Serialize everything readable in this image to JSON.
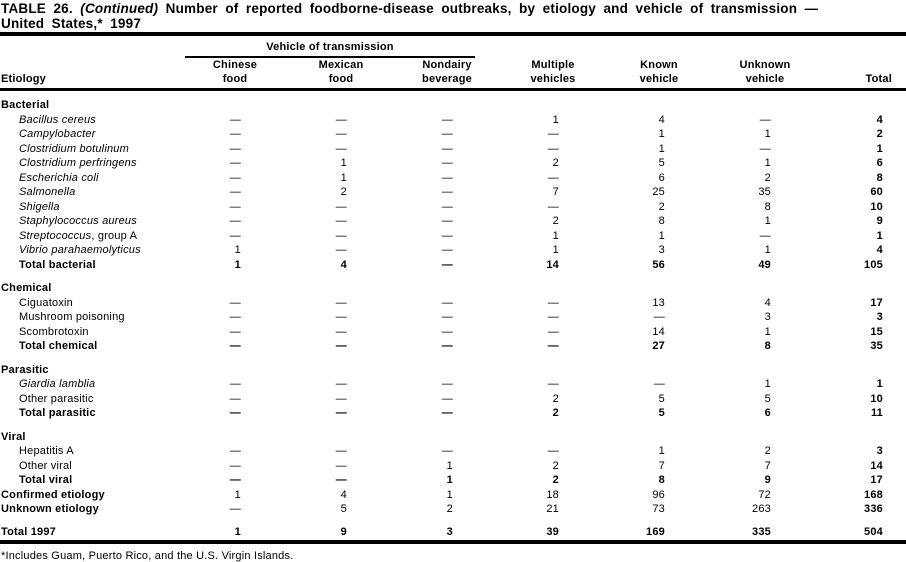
{
  "title": {
    "prefix": "TABLE 26.",
    "continued": "(Continued)",
    "line1_rest": "Number of reported foodborne-disease outbreaks, by etiology and vehicle of transmission —",
    "line2": "United States,* 1997"
  },
  "header": {
    "etiology_label": "Etiology",
    "spanner": "Vehicle of transmission",
    "columns": [
      {
        "line1": "Chinese",
        "line2": "food"
      },
      {
        "line1": "Mexican",
        "line2": "food"
      },
      {
        "line1": "Nondairy",
        "line2": "beverage"
      },
      {
        "line1": "Multiple",
        "line2": "vehicles"
      },
      {
        "line1": "Known",
        "line2": "vehicle"
      },
      {
        "line1": "Unknown",
        "line2": "vehicle"
      }
    ],
    "total_label": "Total"
  },
  "table": {
    "sections": [
      {
        "name": "Bacterial",
        "rows": [
          {
            "label": "Bacillus cereus",
            "italic": true,
            "values": [
              "—",
              "—",
              "—",
              "1",
              "4",
              "—",
              "4"
            ]
          },
          {
            "label": "Campylobacter",
            "italic": true,
            "values": [
              "—",
              "—",
              "—",
              "—",
              "1",
              "1",
              "2"
            ]
          },
          {
            "label": "Clostridium botulinum",
            "italic": true,
            "values": [
              "—",
              "—",
              "—",
              "—",
              "1",
              "—",
              "1"
            ]
          },
          {
            "label": "Clostridium perfringens",
            "italic": true,
            "values": [
              "—",
              "1",
              "—",
              "2",
              "5",
              "1",
              "6"
            ]
          },
          {
            "label": "Escherichia coli",
            "italic": true,
            "values": [
              "—",
              "1",
              "—",
              "—",
              "6",
              "2",
              "8"
            ]
          },
          {
            "label": "Salmonella",
            "italic": true,
            "values": [
              "—",
              "2",
              "—",
              "7",
              "25",
              "35",
              "60"
            ]
          },
          {
            "label": "Shigella",
            "italic": true,
            "values": [
              "—",
              "—",
              "—",
              "—",
              "2",
              "8",
              "10"
            ]
          },
          {
            "label": "Staphylococcus aureus",
            "italic": true,
            "values": [
              "—",
              "—",
              "—",
              "2",
              "8",
              "1",
              "9"
            ]
          },
          {
            "label": "Streptococcus",
            "label_suffix": ", group A",
            "italic": true,
            "values": [
              "—",
              "—",
              "—",
              "1",
              "1",
              "—",
              "1"
            ]
          },
          {
            "label": "Vibrio parahaemolyticus",
            "italic": true,
            "values": [
              "1",
              "—",
              "—",
              "1",
              "3",
              "1",
              "4"
            ]
          },
          {
            "label": "Total bacterial",
            "bold": true,
            "values": [
              "1",
              "4",
              "—",
              "14",
              "56",
              "49",
              "105"
            ]
          }
        ]
      },
      {
        "name": "Chemical",
        "rows": [
          {
            "label": "Ciguatoxin",
            "values": [
              "—",
              "—",
              "—",
              "—",
              "13",
              "4",
              "17"
            ]
          },
          {
            "label": "Mushroom poisoning",
            "values": [
              "—",
              "—",
              "—",
              "—",
              "—",
              "3",
              "3"
            ]
          },
          {
            "label": "Scombrotoxin",
            "values": [
              "—",
              "—",
              "—",
              "—",
              "14",
              "1",
              "15"
            ]
          },
          {
            "label": "Total chemical",
            "bold": true,
            "values": [
              "—",
              "—",
              "—",
              "—",
              "27",
              "8",
              "35"
            ]
          }
        ]
      },
      {
        "name": "Parasitic",
        "rows": [
          {
            "label": "Giardia lamblia",
            "italic": true,
            "values": [
              "—",
              "—",
              "—",
              "—",
              "—",
              "1",
              "1"
            ]
          },
          {
            "label": "Other parasitic",
            "values": [
              "—",
              "—",
              "—",
              "2",
              "5",
              "5",
              "10"
            ]
          },
          {
            "label": "Total parasitic",
            "bold": true,
            "values": [
              "—",
              "—",
              "—",
              "2",
              "5",
              "6",
              "11"
            ]
          }
        ]
      },
      {
        "name": "Viral",
        "rows": [
          {
            "label": "Hepatitis A",
            "values": [
              "—",
              "—",
              "—",
              "—",
              "1",
              "2",
              "3"
            ]
          },
          {
            "label": "Other viral",
            "values": [
              "—",
              "—",
              "1",
              "2",
              "7",
              "7",
              "14"
            ]
          },
          {
            "label": "Total viral",
            "bold": true,
            "values": [
              "—",
              "—",
              "1",
              "2",
              "8",
              "9",
              "17"
            ]
          }
        ]
      }
    ],
    "summary_rows": [
      {
        "label": "Confirmed etiology",
        "bold_label": true,
        "values": [
          "1",
          "4",
          "1",
          "18",
          "96",
          "72",
          "168"
        ]
      },
      {
        "label": "Unknown etiology",
        "bold_label": true,
        "values": [
          "—",
          "5",
          "2",
          "21",
          "73",
          "263",
          "336"
        ]
      }
    ],
    "total_row": {
      "label": "Total 1997",
      "bold": true,
      "values": [
        "1",
        "9",
        "3",
        "39",
        "169",
        "335",
        "504"
      ]
    }
  },
  "footnote": "*Includes Guam, Puerto Rico, and the U.S. Virgin Islands."
}
